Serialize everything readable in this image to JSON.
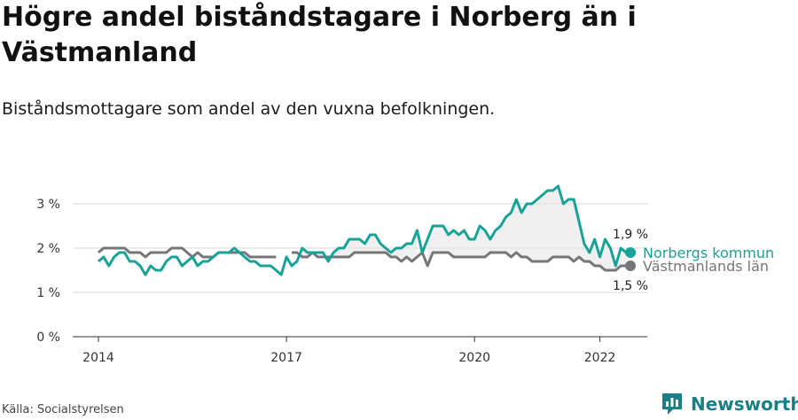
{
  "title": "Högre andel biståndstagare i Norberg än i Västmanland",
  "subtitle": "Biståndsmottagare som andel av den vuxna befolkningen.",
  "source": "Källa: Socialstyrelsen",
  "brand": "Newsworthy",
  "colors": {
    "norberg": "#17a398",
    "vastmanland": "#76767a",
    "grid": "#d9d9d9",
    "fill": "#e6e6e6",
    "brand": "#1a7f86"
  },
  "chart_data": {
    "type": "line",
    "x_start": "2014-01",
    "x_frequency": "monthly",
    "ylim": [
      0,
      3.5
    ],
    "yticks": [
      0,
      1,
      2,
      3
    ],
    "ytick_labels": [
      "0 %",
      "1 %",
      "2 %",
      "3 %"
    ],
    "xticks": [
      "2014",
      "2017",
      "2020",
      "2022"
    ],
    "series": [
      {
        "name": "Norbergs kommun",
        "end_label": "1,9 %",
        "values": [
          1.7,
          1.8,
          1.6,
          1.8,
          1.9,
          1.9,
          1.7,
          1.7,
          1.6,
          1.4,
          1.6,
          1.5,
          1.5,
          1.7,
          1.8,
          1.8,
          1.6,
          1.7,
          1.8,
          1.6,
          1.7,
          1.7,
          1.8,
          1.9,
          1.9,
          1.9,
          2.0,
          1.9,
          1.8,
          1.7,
          1.7,
          1.6,
          1.6,
          1.6,
          1.5,
          1.4,
          1.8,
          1.6,
          1.7,
          2.0,
          1.9,
          1.9,
          1.9,
          1.9,
          1.7,
          1.9,
          2.0,
          2.0,
          2.2,
          2.2,
          2.2,
          2.1,
          2.3,
          2.3,
          2.1,
          2.0,
          1.9,
          2.0,
          2.0,
          2.1,
          2.1,
          2.4,
          1.9,
          2.2,
          2.5,
          2.5,
          2.5,
          2.3,
          2.4,
          2.3,
          2.4,
          2.2,
          2.2,
          2.5,
          2.4,
          2.2,
          2.4,
          2.5,
          2.7,
          2.8,
          3.1,
          2.8,
          3.0,
          3.0,
          3.1,
          3.2,
          3.3,
          3.3,
          3.4,
          3.0,
          3.1,
          3.1,
          2.6,
          2.1,
          1.9,
          2.2,
          1.8,
          2.2,
          2.0,
          1.6,
          2.0,
          1.9
        ]
      },
      {
        "name": "Västmanlands län",
        "end_label": "1,5 %",
        "values": [
          1.9,
          2.0,
          2.0,
          2.0,
          2.0,
          2.0,
          1.9,
          1.9,
          1.9,
          1.8,
          1.9,
          1.9,
          1.9,
          1.9,
          2.0,
          2.0,
          2.0,
          1.9,
          1.8,
          1.9,
          1.8,
          1.8,
          1.8,
          1.9,
          1.9,
          1.9,
          1.9,
          1.9,
          1.9,
          1.8,
          1.8,
          1.8,
          1.8,
          1.8,
          1.8,
          null,
          null,
          1.9,
          1.9,
          1.8,
          1.8,
          1.9,
          1.8,
          1.8,
          1.8,
          1.8,
          1.8,
          1.8,
          1.8,
          1.9,
          1.9,
          1.9,
          1.9,
          1.9,
          1.9,
          1.9,
          1.8,
          1.8,
          1.7,
          1.8,
          1.7,
          1.8,
          1.9,
          1.6,
          1.9,
          1.9,
          1.9,
          1.9,
          1.8,
          1.8,
          1.8,
          1.8,
          1.8,
          1.8,
          1.8,
          1.9,
          1.9,
          1.9,
          1.9,
          1.8,
          1.9,
          1.8,
          1.8,
          1.7,
          1.7,
          1.7,
          1.7,
          1.8,
          1.8,
          1.8,
          1.8,
          1.7,
          1.8,
          1.7,
          1.7,
          1.6,
          1.6,
          1.5,
          1.5,
          1.5,
          1.6,
          1.6,
          1.5
        ]
      }
    ]
  }
}
